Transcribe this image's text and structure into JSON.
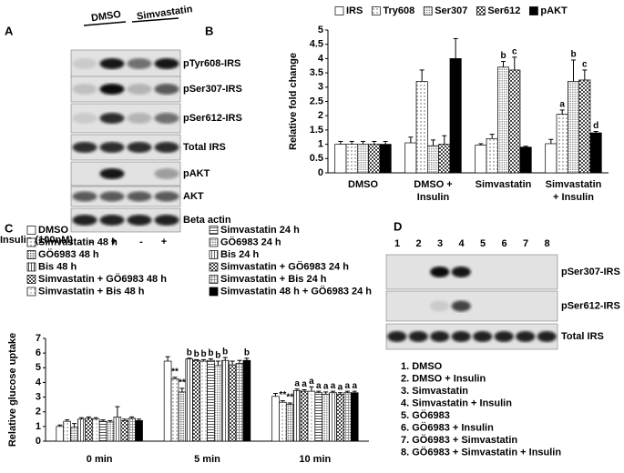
{
  "panel_a": {
    "panel": "A",
    "lanes": [
      "DMSO",
      "Simvastatin"
    ],
    "rows": [
      "pTyr608-IRS",
      "pSer307-IRS",
      "pSer612-IRS",
      "Total IRS",
      "pAKT",
      "AKT",
      "Beta actin"
    ],
    "treatment": "Insulin (100nM)",
    "signs": [
      "-",
      "+",
      "-",
      "+"
    ]
  },
  "chart_data": [
    {
      "type": "bar",
      "panel": "B",
      "ylabel": "Relative fold change",
      "categories": [
        [
          "DMSO"
        ],
        [
          "DMSO +",
          "Insulin"
        ],
        [
          "Simvastatin"
        ],
        [
          "Simvastatin",
          "+ Insulin"
        ]
      ],
      "ylim": [
        0,
        5
      ],
      "yticks": [
        0,
        0.5,
        1,
        1.5,
        2,
        2.5,
        3,
        3.5,
        4,
        4.5,
        5
      ],
      "legend": "top",
      "series": [
        {
          "name": "IRS",
          "color": "#ffffff",
          "pattern": "none",
          "values": [
            1,
            1.05,
            0.97,
            1.02
          ],
          "errors": [
            0.1,
            0.2,
            0.05,
            0.15
          ],
          "labels": [
            null,
            null,
            null,
            null
          ]
        },
        {
          "name": "Try608",
          "color": "#555555",
          "pattern": "dots",
          "values": [
            1,
            3.2,
            1.2,
            2.05
          ],
          "errors": [
            0.1,
            0.4,
            0.15,
            0.15
          ],
          "labels": [
            null,
            null,
            null,
            "a"
          ]
        },
        {
          "name": "Ser307",
          "color": "#888888",
          "pattern": "dense",
          "values": [
            1,
            0.95,
            3.7,
            3.2
          ],
          "errors": [
            0.1,
            0.2,
            0.2,
            0.75
          ],
          "labels": [
            null,
            null,
            "b",
            "b"
          ]
        },
        {
          "name": "Ser612",
          "color": "#444444",
          "pattern": "checker",
          "values": [
            1,
            1.0,
            3.6,
            3.25
          ],
          "errors": [
            0.1,
            0.3,
            0.45,
            0.35
          ],
          "labels": [
            null,
            null,
            "c",
            "c"
          ]
        },
        {
          "name": "pAKT",
          "color": "#000000",
          "pattern": "solid",
          "values": [
            1,
            4.0,
            0.9,
            1.4
          ],
          "errors": [
            0.1,
            0.7,
            0.03,
            0.05
          ],
          "labels": [
            null,
            null,
            null,
            "d"
          ]
        }
      ]
    },
    {
      "type": "bar",
      "panel": "C",
      "ylabel": "Relative glucose uptake",
      "categories": [
        [
          "0 min"
        ],
        [
          "5 min"
        ],
        [
          "10 min"
        ]
      ],
      "ylim": [
        0,
        7
      ],
      "yticks": [
        0,
        1,
        2,
        3,
        4,
        5,
        6,
        7
      ],
      "legend": "top",
      "series": [
        {
          "name": "DMSO",
          "color": "#ffffff",
          "pattern": "none",
          "values": [
            1.0,
            5.45,
            3.05
          ],
          "errors": [
            0.1,
            0.3,
            0.2
          ],
          "labels": [
            null,
            null,
            null
          ]
        },
        {
          "name": "Simvastatin 48 h",
          "color": "#666666",
          "pattern": "dots",
          "values": [
            1.35,
            4.25,
            2.65
          ],
          "errors": [
            0.1,
            0.1,
            0.1
          ],
          "labels": [
            null,
            "**",
            "**"
          ]
        },
        {
          "name": "GÖ6983 48 h",
          "color": "#555555",
          "pattern": "dense",
          "values": [
            0.95,
            3.35,
            2.5
          ],
          "errors": [
            0.25,
            0.25,
            0.1
          ],
          "labels": [
            null,
            "**",
            "**"
          ]
        },
        {
          "name": "Bis 48 h",
          "color": "#555555",
          "pattern": "vlines",
          "values": [
            1.5,
            5.6,
            3.45
          ],
          "errors": [
            0.1,
            0.05,
            0.1
          ],
          "labels": [
            null,
            "b",
            "a"
          ]
        },
        {
          "name": "Simvastatin + GÖ6983  48 h",
          "color": "#444444",
          "pattern": "checker",
          "values": [
            1.55,
            5.5,
            3.4
          ],
          "errors": [
            0.1,
            0.05,
            0.1
          ],
          "labels": [
            null,
            "b",
            "a"
          ]
        },
        {
          "name": "Simvastatin + Bis 48 h",
          "color": "#888888",
          "pattern": "dots",
          "values": [
            1.5,
            5.45,
            3.4
          ],
          "errors": [
            0.1,
            0.1,
            0.3
          ],
          "labels": [
            null,
            "b",
            "a"
          ]
        },
        {
          "name": "Simvastatin 24 h",
          "color": "#555555",
          "pattern": "hlines",
          "values": [
            1.35,
            5.5,
            3.3
          ],
          "errors": [
            0.1,
            0.1,
            0.1
          ],
          "labels": [
            null,
            "b",
            "a"
          ]
        },
        {
          "name": "GÖ6983 24 h",
          "color": "#777777",
          "pattern": "dense",
          "values": [
            1.3,
            5.15,
            3.2
          ],
          "errors": [
            0.1,
            0.3,
            0.15
          ],
          "labels": [
            null,
            "b",
            "a"
          ]
        },
        {
          "name": "Bis 24 h",
          "color": "#666666",
          "pattern": "vlines",
          "values": [
            1.65,
            5.5,
            3.3
          ],
          "errors": [
            0.7,
            0.2,
            0.1
          ],
          "labels": [
            null,
            "b",
            "a"
          ]
        },
        {
          "name": "Simvastatin + GÖ6983 24 h",
          "color": "#444444",
          "pattern": "checker",
          "values": [
            1.4,
            5.2,
            3.2
          ],
          "errors": [
            0.1,
            0.25,
            0.1
          ],
          "labels": [
            null,
            null,
            "a"
          ]
        },
        {
          "name": "Simvastatin + Bis 24 h",
          "color": "#999999",
          "pattern": "grid",
          "values": [
            1.55,
            5.3,
            3.3
          ],
          "errors": [
            0.1,
            0.2,
            0.1
          ],
          "labels": [
            null,
            null,
            "a"
          ]
        },
        {
          "name": "Simvastatin 48 h + GÖ6983  24 h",
          "color": "#000000",
          "pattern": "solid",
          "values": [
            1.4,
            5.5,
            3.3
          ],
          "errors": [
            0.1,
            0.15,
            0.1
          ],
          "labels": [
            null,
            "b",
            "a"
          ]
        }
      ]
    }
  ],
  "panel_d": {
    "panel": "D",
    "lanes": [
      "1",
      "2",
      "3",
      "4",
      "5",
      "6",
      "7",
      "8"
    ],
    "rows": [
      "pSer307-IRS",
      "pSer612-IRS",
      "Total IRS"
    ],
    "legend": [
      "1.  DMSO",
      "2.  DMSO + Insulin",
      "3.  Simvastatin",
      "4.  Simvastatin + Insulin",
      "5.  GÖ6983",
      "6.  GÖ6983 + Insulin",
      "7.  GÖ6983 + Simvastatin",
      "8.  GÖ6983 + Simvastatin + Insulin"
    ]
  }
}
